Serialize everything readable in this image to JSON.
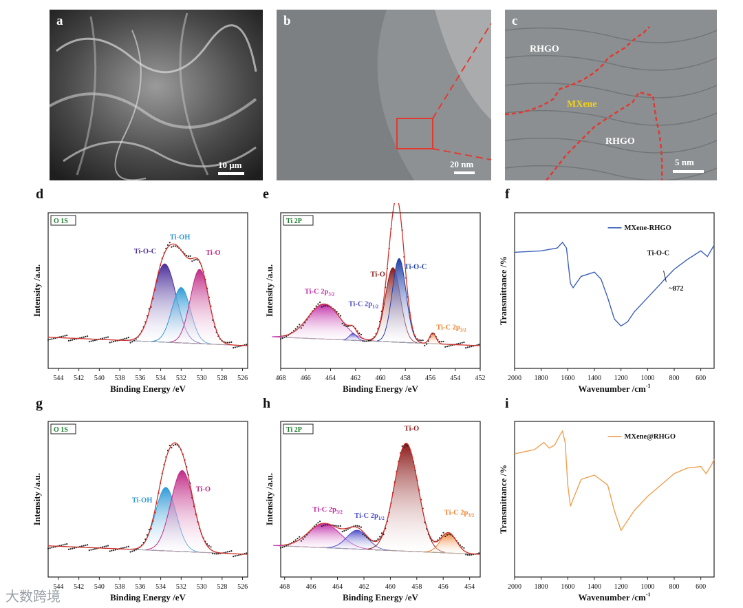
{
  "tem": {
    "a": {
      "letter": "a",
      "scale": "10 μm"
    },
    "b": {
      "letter": "b",
      "scale": "20 nm"
    },
    "c": {
      "letter": "c",
      "scale": "5 nm",
      "labels": [
        "RHGO",
        "MXene",
        "RHGO"
      ]
    }
  },
  "watermark": "大数跨境",
  "chart_data": [
    {
      "id": "d",
      "type": "line",
      "badge": "O 1S",
      "xlabel": "Binding Energy /eV",
      "ylabel": "Intensity /a.u.",
      "xlim": [
        545,
        525.5
      ],
      "xticks": [
        544,
        542,
        540,
        538,
        536,
        534,
        532,
        530,
        528,
        526
      ],
      "peaks": [
        {
          "name": "Ti-O-C",
          "center": 533.6,
          "height": 0.58,
          "width": 1.1,
          "color": "#4a2e9a"
        },
        {
          "name": "Ti-OH",
          "center": 532.0,
          "height": 0.41,
          "width": 0.9,
          "color": "#2f9ad6"
        },
        {
          "name": "Ti-O",
          "center": 530.2,
          "height": 0.55,
          "width": 0.9,
          "color": "#c02a86"
        }
      ],
      "labels": [
        "Ti-O-C",
        "Ti-OH",
        "Ti-O"
      ]
    },
    {
      "id": "e",
      "type": "line",
      "badge": "Ti 2P",
      "xlabel": "Binding Energy /eV",
      "ylabel": "Intensity /a.u.",
      "xlim": [
        468,
        452
      ],
      "xticks": [
        468,
        466,
        464,
        462,
        460,
        458,
        456,
        454,
        452
      ],
      "peaks": [
        {
          "name": "Ti-C 2p3/2",
          "center": 464.5,
          "height": 0.26,
          "width": 1.3,
          "color": "#c02aa8"
        },
        {
          "name": "Ti-C 2p1/2",
          "center": 462.2,
          "height": 0.05,
          "width": 0.3,
          "color": "#4b4bc8"
        },
        {
          "name": "Ti-O",
          "center": 459.0,
          "height": 0.55,
          "width": 0.6,
          "color": "#8b1a1a"
        },
        {
          "name": "Ti-O-C",
          "center": 458.5,
          "height": 0.62,
          "width": 0.55,
          "color": "#1f3fa8"
        },
        {
          "name": "Ti-C 2p3/2",
          "center": 455.8,
          "height": 0.08,
          "width": 0.25,
          "color": "#f08030"
        }
      ],
      "labels": [
        "Ti-C 2p",
        "3/2",
        "Ti-C 2p",
        "1/2",
        "Ti-O",
        "Ti-O-C",
        "Ti-C 2p",
        "3/2"
      ]
    },
    {
      "id": "f",
      "type": "line",
      "ylabel": "Transmittance /%",
      "xlabel": "Wavenumber /cm",
      "xlabel_sup": "-1",
      "xlim": [
        2000,
        500
      ],
      "xticks": [
        2000,
        1800,
        1600,
        1400,
        1200,
        1000,
        800,
        600
      ],
      "series": [
        {
          "name": "MXene-RHGO",
          "color": "#3a5fb8",
          "x": [
            2000,
            1800,
            1680,
            1640,
            1610,
            1580,
            1560,
            1500,
            1400,
            1350,
            1300,
            1250,
            1200,
            1150,
            1100,
            1000,
            900,
            872,
            800,
            700,
            600,
            550,
            500
          ],
          "y": [
            0.77,
            0.78,
            0.8,
            0.84,
            0.8,
            0.55,
            0.52,
            0.6,
            0.63,
            0.58,
            0.45,
            0.3,
            0.25,
            0.28,
            0.35,
            0.45,
            0.55,
            0.58,
            0.65,
            0.72,
            0.78,
            0.74,
            0.82
          ]
        }
      ],
      "annotations": [
        "Ti-O-C",
        "~872"
      ]
    },
    {
      "id": "g",
      "type": "line",
      "badge": "O 1S",
      "xlabel": "Binding Energy /eV",
      "ylabel": "Intensity /a.u.",
      "xlim": [
        545,
        525.5
      ],
      "xticks": [
        544,
        542,
        540,
        538,
        536,
        534,
        532,
        530,
        528,
        526
      ],
      "peaks": [
        {
          "name": "Ti-OH",
          "center": 533.5,
          "height": 0.47,
          "width": 1.0,
          "color": "#2f9ad6"
        },
        {
          "name": "Ti-O",
          "center": 531.9,
          "height": 0.6,
          "width": 1.1,
          "color": "#c02a86"
        }
      ],
      "labels": [
        "Ti-OH",
        "Ti-O"
      ]
    },
    {
      "id": "h",
      "type": "line",
      "badge": "Ti 2P",
      "xlabel": "Binding Energy /eV",
      "ylabel": "Intensity /a.u.",
      "xlim": [
        468.3,
        453.2
      ],
      "xticks": [
        468,
        466,
        464,
        462,
        460,
        458,
        456,
        454
      ],
      "peaks": [
        {
          "name": "Ti-C 2p3/2",
          "center": 465.0,
          "height": 0.18,
          "width": 1.2,
          "color": "#c02aa8"
        },
        {
          "name": "Ti-C 2p1/2",
          "center": 462.5,
          "height": 0.14,
          "width": 0.8,
          "color": "#4b4bc8"
        },
        {
          "name": "Ti-O",
          "center": 458.8,
          "height": 0.8,
          "width": 0.9,
          "color": "#8b1a1a"
        },
        {
          "name": "Ti-C 2p3/2",
          "center": 455.6,
          "height": 0.15,
          "width": 0.6,
          "color": "#f08030"
        }
      ],
      "labels": [
        "Ti-C 2p",
        "3/2",
        "Ti-C 2p",
        "1/2",
        "Ti-O",
        "Ti-C 2p",
        "3/2"
      ]
    },
    {
      "id": "i",
      "type": "line",
      "ylabel": "Transmittance /%",
      "xlabel": "Wavenumber /cm",
      "xlabel_sup": "-1",
      "xlim": [
        2000,
        500
      ],
      "xticks": [
        2000,
        1800,
        1600,
        1400,
        1200,
        1000,
        800,
        600
      ],
      "series": [
        {
          "name": "MXene@RHGO",
          "color": "#f0a050",
          "x": [
            2000,
            1850,
            1780,
            1740,
            1700,
            1660,
            1640,
            1620,
            1600,
            1580,
            1560,
            1500,
            1400,
            1300,
            1250,
            1200,
            1150,
            1100,
            1000,
            900,
            800,
            700,
            600,
            560,
            520,
            500
          ],
          "y": [
            0.82,
            0.85,
            0.9,
            0.86,
            0.88,
            0.95,
            0.98,
            0.9,
            0.6,
            0.45,
            0.5,
            0.64,
            0.67,
            0.6,
            0.42,
            0.28,
            0.35,
            0.42,
            0.52,
            0.6,
            0.68,
            0.72,
            0.73,
            0.68,
            0.74,
            0.78
          ]
        }
      ]
    }
  ]
}
